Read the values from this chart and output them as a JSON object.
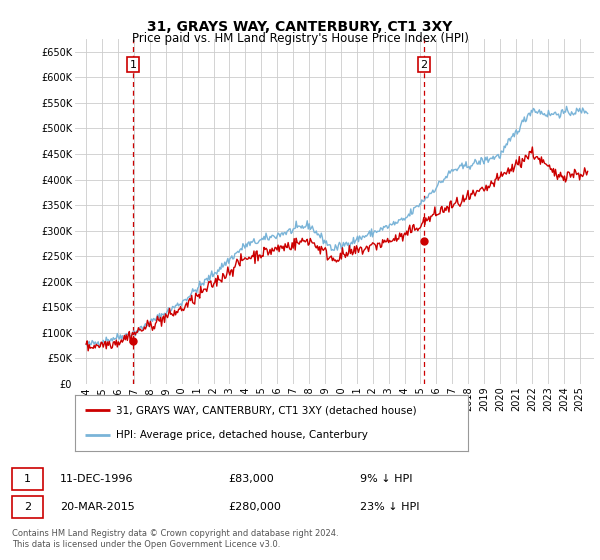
{
  "title": "31, GRAYS WAY, CANTERBURY, CT1 3XY",
  "subtitle": "Price paid vs. HM Land Registry's House Price Index (HPI)",
  "ylim": [
    0,
    675000
  ],
  "yticks": [
    0,
    50000,
    100000,
    150000,
    200000,
    250000,
    300000,
    350000,
    400000,
    450000,
    500000,
    550000,
    600000,
    650000
  ],
  "ytick_labels": [
    "£0",
    "£50K",
    "£100K",
    "£150K",
    "£200K",
    "£250K",
    "£300K",
    "£350K",
    "£400K",
    "£450K",
    "£500K",
    "£550K",
    "£600K",
    "£650K"
  ],
  "purchase1_date": 1996.95,
  "purchase1_price": 83000,
  "purchase2_date": 2015.22,
  "purchase2_price": 280000,
  "hpi_color": "#7ab4d8",
  "price_color": "#cc0000",
  "vline_color": "#cc0000",
  "grid_color": "#cccccc",
  "background_color": "#ffffff",
  "legend_label1": "31, GRAYS WAY, CANTERBURY, CT1 3XY (detached house)",
  "legend_label2": "HPI: Average price, detached house, Canterbury",
  "table_row1": [
    "1",
    "11-DEC-1996",
    "£83,000",
    "9% ↓ HPI"
  ],
  "table_row2": [
    "2",
    "20-MAR-2015",
    "£280,000",
    "23% ↓ HPI"
  ],
  "footer": "Contains HM Land Registry data © Crown copyright and database right 2024.\nThis data is licensed under the Open Government Licence v3.0.",
  "title_fontsize": 10,
  "subtitle_fontsize": 8.5,
  "tick_fontsize": 7,
  "legend_fontsize": 7.5,
  "table_fontsize": 8,
  "footer_fontsize": 6
}
